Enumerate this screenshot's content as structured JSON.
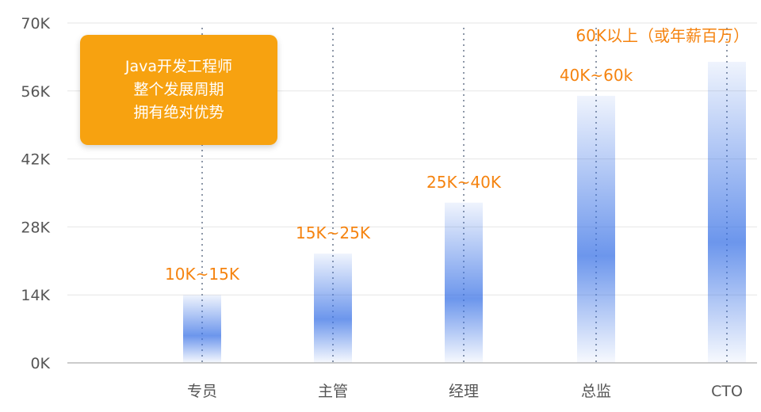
{
  "colors": {
    "bar": "#3B73E6",
    "range_label": "#F5830F",
    "callout_bg": "#F7A210",
    "grid": "#E6E6E6",
    "axis": "#999999",
    "tick_text": "#555555"
  },
  "callout": {
    "line1": "Java开发工程师",
    "line2": "整个发展周期",
    "line3": "拥有绝对优势"
  },
  "chart_data": {
    "type": "bar",
    "title": "",
    "xlabel": "",
    "ylabel": "",
    "ylim": [
      0,
      70
    ],
    "y_ticks": [
      "0K",
      "14K",
      "28K",
      "42K",
      "56K",
      "70K"
    ],
    "y_tick_values": [
      0,
      14,
      28,
      42,
      56,
      70
    ],
    "grid": true,
    "categories": [
      "专员",
      "主管",
      "经理",
      "总监",
      "CTO"
    ],
    "values": [
      14,
      22.5,
      33,
      55,
      62
    ],
    "range_labels": [
      "10K~15K",
      "15K~25K",
      "25K~40K",
      "40K~60k",
      "60K以上（或年薪百万）"
    ]
  }
}
